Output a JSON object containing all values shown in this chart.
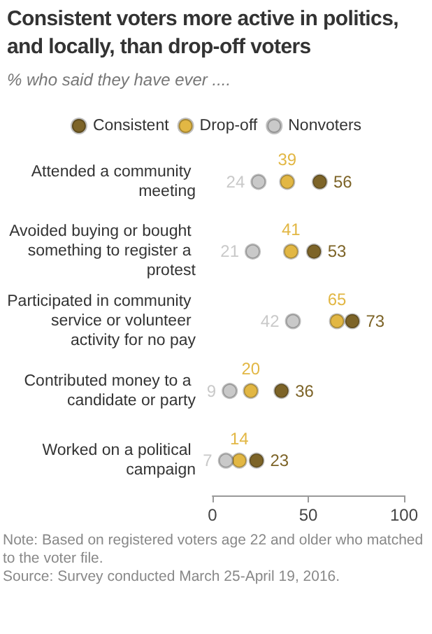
{
  "chart_data": {
    "type": "scatter",
    "title": "Consistent voters more active in politics, and locally, than drop-off voters",
    "subtitle": "% who said they have ever ....",
    "orientation": "horizontal",
    "categories": [
      "Attended a community meeting",
      "Avoided buying or bought something to register a protest",
      "Participated in community service or volunteer activity for no pay",
      "Contributed money to a candidate or party",
      "Worked on a political campaign"
    ],
    "series": [
      {
        "name": "Consistent",
        "color": "#7d6428",
        "values": [
          56,
          53,
          73,
          36,
          23
        ]
      },
      {
        "name": "Drop-off",
        "color": "#e2b744",
        "values": [
          39,
          41,
          65,
          20,
          14
        ]
      },
      {
        "name": "Nonvoters",
        "color": "#c9c9c9",
        "values": [
          24,
          21,
          42,
          9,
          7
        ]
      }
    ],
    "xlim": [
      0,
      100
    ],
    "xticks": [
      0,
      50,
      100
    ],
    "grid": false,
    "legend": "top",
    "marker": "circle",
    "data_labels": true,
    "annotations": [
      "Note: Based on registered voters age 22 and older who matched to the voter file.",
      "Source: Survey conducted March 25-April 19, 2016."
    ]
  }
}
